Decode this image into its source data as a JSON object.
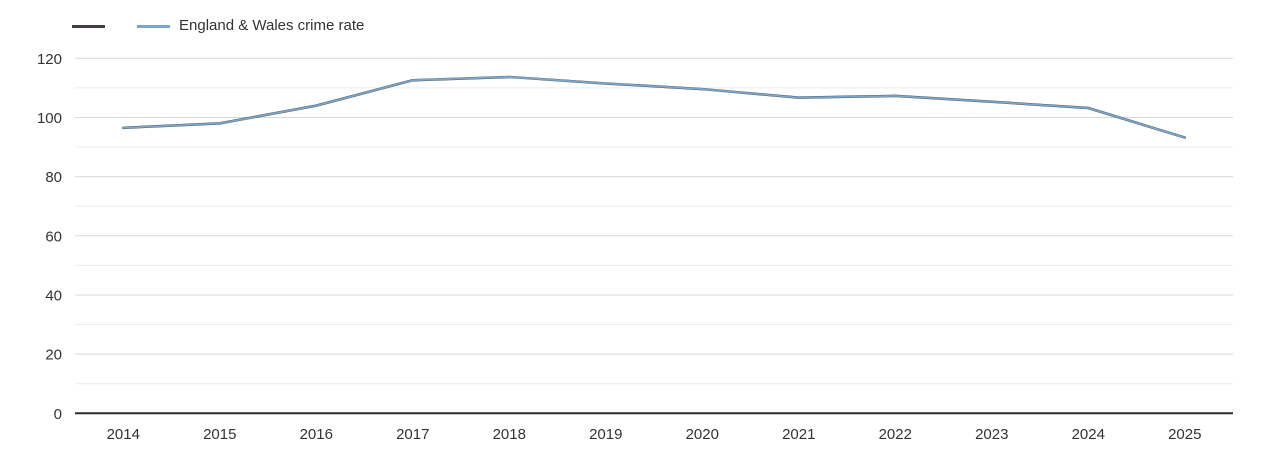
{
  "chart_data": {
    "type": "line",
    "title": "",
    "xlabel": "",
    "ylabel": "",
    "categories": [
      "2014",
      "2015",
      "2016",
      "2017",
      "2018",
      "2019",
      "2020",
      "2021",
      "2022",
      "2023",
      "2024",
      "2025"
    ],
    "series": [
      {
        "name": "",
        "color": "#433d44",
        "width": 2.5,
        "values": [
          96.5,
          98,
          104,
          112.6,
          113.7,
          111.5,
          109.6,
          106.7,
          107.3,
          105.3,
          103.2,
          93.2
        ]
      },
      {
        "name": "England & Wales crime rate",
        "color": "#7aa7cb",
        "width": 1.8,
        "values": [
          96.5,
          98,
          104,
          112.6,
          113.7,
          111.5,
          109.6,
          106.7,
          107.3,
          105.3,
          103.2,
          93.2
        ]
      }
    ],
    "ylim": [
      0,
      120
    ],
    "y_ticks": [
      0,
      20,
      40,
      60,
      80,
      100,
      120
    ],
    "minor_tick_step": 10,
    "grid": true,
    "legend_position": "top-left"
  },
  "axis_style": {
    "label_color": "#333333",
    "major_grid_color": "#d8d8d8",
    "minor_grid_color": "#ececec",
    "axis_line_color": "#2b2b2b"
  }
}
